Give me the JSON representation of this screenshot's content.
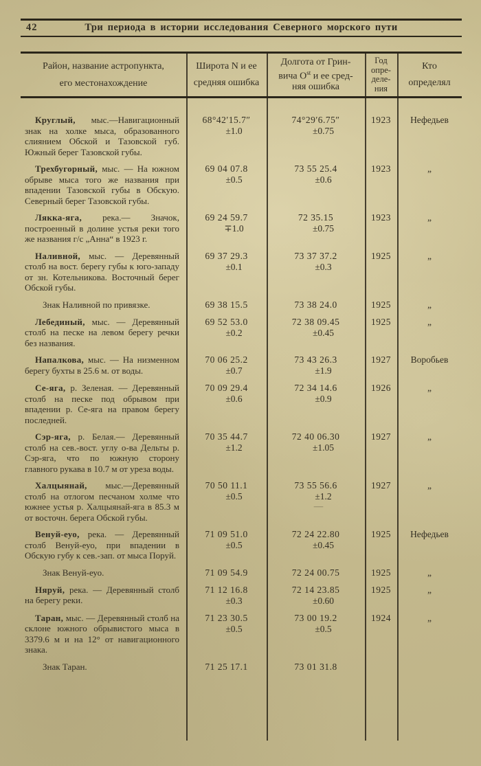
{
  "colors": {
    "paper": "#cbc093",
    "ink": "#332e23",
    "rule": "#2b261a"
  },
  "header": {
    "page_number": "42",
    "running_title": "Три периода в истории исследования Северного морского пути"
  },
  "table": {
    "headers": {
      "location": [
        "Район, название астропункта,",
        "его местонахождение"
      ],
      "latitude": [
        "Широта N и ее",
        "средняя ошибка"
      ],
      "longitude": {
        "l1": "Долгота от Грин-",
        "l2a": "вича O",
        "l2b": "st",
        "l2c": " и ее сред-",
        "l3": "няя ошибка"
      },
      "year": [
        "Год",
        "опре-",
        "деле-",
        "ния"
      ],
      "observer": [
        "Кто",
        "определял"
      ]
    },
    "rows": [
      {
        "name": "Круглый,",
        "desc": " мыс.—Навигационный знак на холке мыса, образованного слиянием Обской и Тазовской губ. Южный берег Тазовской губы.",
        "lat": "68°42′15.7″",
        "lat_err": "±1.0",
        "lon": "74°29′6.75″",
        "lon_err": "±0.75",
        "year": "1923",
        "who": "Нефедьев"
      },
      {
        "name": "Трехбугорный,",
        "desc": " мыс. — На южном обрыве мыса того же названия при впадении Тазовской губы в Обскую. Северный берег Тазовской губы.",
        "lat": "69 04 07.8",
        "lat_err": "±0.5",
        "lon": "73 55 25.4",
        "lon_err": "±0.6",
        "year": "1923",
        "who": "„"
      },
      {
        "name": "Лякка-яга,",
        "desc": " река.— Значок, построенный в долине устья реки того же названия г/с „Анна“ в 1923 г.",
        "lat": "69 24 59.7",
        "lat_err": "∓1.0",
        "lon": "72 35.15",
        "lon_err": "±0.75",
        "year": "1923",
        "who": "„"
      },
      {
        "name": "Наливной,",
        "desc": " мыс. — Деревянный столб на вост. берегу губы к юго-западу от зн. Котельникова. Восточный берег Обской губы.",
        "lat": "69 37 29.3",
        "lat_err": "±0.1",
        "lon": "73 37 37.2",
        "lon_err": "±0.3",
        "year": "1925",
        "who": "„"
      },
      {
        "ref": true,
        "name": "",
        "desc": "Знак Наливной по привязке.",
        "lat": "69 38 15.5",
        "lat_err": "",
        "lon": "73 38 24.0",
        "lon_err": "",
        "year": "1925",
        "who": "„"
      },
      {
        "name": "Лебединый,",
        "desc": " мыс. — Деревянный столб на песке на левом берегу речки без названия.",
        "lat": "69 52 53.0",
        "lat_err": "±0.2",
        "lon": "72 38 09.45",
        "lon_err": "±0.45",
        "year": "1925",
        "who": "„"
      },
      {
        "name": "Напалкова,",
        "desc": " мыс. — На низменном берегу бухты в 25.6 м. от воды.",
        "lat": "70 06 25.2",
        "lat_err": "±0.7",
        "lon": "73 43 26.3",
        "lon_err": "±1.9",
        "year": "1927",
        "who": "Воробьев"
      },
      {
        "name": "Се-яга,",
        "desc": " р. Зеленая. — Деревянный столб на песке под обрывом при впадении р. Се-яга на правом берегу последней.",
        "lat": "70 09 29.4",
        "lat_err": "±0.6",
        "lon": "72 34 14.6",
        "lon_err": "±0.9",
        "year": "1926",
        "who": "„"
      },
      {
        "name": "Сэр-яга,",
        "desc": " р. Белая.— Деревянный столб на сев.-вост. углу о-ва Дельты р. Сэр-яга, что по южную сторону главного рукава в 10.7 м от уреза воды.",
        "lat": "70 35 44.7",
        "lat_err": "±1.2",
        "lon": "72 40 06.30",
        "lon_err": "±1.05",
        "year": "1927",
        "who": "„"
      },
      {
        "name": "Халцыянай,",
        "desc": " мыс.—Деревянный столб на отлогом песчаном холме что южнее устья р. Халцыянай-яга в 85.3 м от восточн. берега Обской губы.",
        "lat": "70 50 11.1",
        "lat_err": "±0.5",
        "lon": "73 55 56.6",
        "lon_err": "±1.2",
        "lon_note": "—",
        "year": "1927",
        "who": "„"
      },
      {
        "name": "Венуй-еуо,",
        "desc": " река. — Деревянный столб Венуй-еуо, при впадении в Обскую губу к сев.-зап. от мыса Поруй.",
        "lat": "71 09 51.0",
        "lat_err": "±0.5",
        "lon": "72 24 22.80",
        "lon_err": "±0.45",
        "year": "1925",
        "who": "Нефедьев"
      },
      {
        "ref": true,
        "name": "",
        "desc": "Знак Венуй-еуо.",
        "lat": "71 09 54.9",
        "lat_err": "",
        "lon": "72 24 00.75",
        "lon_err": "",
        "year": "1925",
        "who": "„"
      },
      {
        "name": "Няруй,",
        "desc": " река. — Деревянный столб на берегу реки.",
        "lat": "71 12 16.8",
        "lat_err": "±0.3",
        "lon": "72 14 23.85",
        "lon_err": "±0.60",
        "year": "1925",
        "who": "„"
      },
      {
        "name": "Таран,",
        "desc": " мыс. — Деревянный столб на склоне южного обрывистого мыса в 3379.6 м и на 12° от навигационного знака.",
        "lat": "71 23 30.5",
        "lat_err": "±0.5",
        "lon": "73 00 19.2",
        "lon_err": "±0.5",
        "year": "1924",
        "who": "„"
      },
      {
        "ref": true,
        "name": "",
        "desc": "Знак Таран.",
        "lat": "71 25 17.1",
        "lat_err": "",
        "lon": "73 01 31.8",
        "lon_err": "",
        "year": "",
        "who": ""
      }
    ]
  }
}
